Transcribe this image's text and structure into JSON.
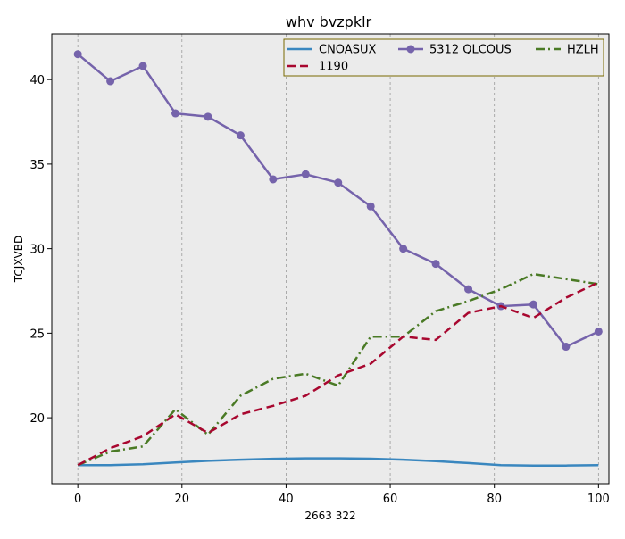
{
  "chart_data": {
    "type": "line",
    "title": "whv bvzpklr",
    "xlabel": "2663 322",
    "ylabel": "TCJXVBD",
    "xlim": [
      -5,
      102
    ],
    "ylim": [
      16.1,
      42.7
    ],
    "xticks": [
      0,
      20,
      40,
      60,
      80,
      100
    ],
    "yticks": [
      20,
      25,
      30,
      35,
      40
    ],
    "grid": "vertical dashed",
    "legend_position": "top-right",
    "background": "#ebebeb",
    "series": [
      {
        "name": "CNOASUX",
        "color": "#3a87bf",
        "style": "solid",
        "marker": "none",
        "x": [
          0,
          6.25,
          12.5,
          18.75,
          25,
          31.25,
          37.5,
          43.75,
          50,
          56.25,
          62.5,
          68.75,
          75,
          81.25,
          87.5,
          93.75,
          100
        ],
        "y": [
          17.2,
          17.2,
          17.25,
          17.35,
          17.45,
          17.52,
          17.57,
          17.6,
          17.6,
          17.58,
          17.52,
          17.43,
          17.32,
          17.2,
          17.17,
          17.17,
          17.2
        ]
      },
      {
        "name": "5312 QLCOUS",
        "color": "#7563ab",
        "style": "solid",
        "marker": "circle",
        "x": [
          0,
          6.25,
          12.5,
          18.75,
          25,
          31.25,
          37.5,
          43.75,
          50,
          56.25,
          62.5,
          68.75,
          75,
          81.25,
          87.5,
          93.75,
          100
        ],
        "y": [
          41.5,
          39.9,
          40.8,
          38.0,
          37.8,
          36.7,
          34.1,
          34.4,
          33.9,
          32.5,
          30.0,
          29.1,
          27.6,
          26.6,
          26.7,
          24.2,
          25.1
        ]
      },
      {
        "name": "HZLH",
        "color": "#4a7a25",
        "style": "dashdot",
        "marker": "none",
        "x": [
          0,
          6.25,
          12.5,
          18.75,
          25,
          31.25,
          37.5,
          43.75,
          50,
          56.25,
          62.5,
          68.75,
          75,
          81.25,
          87.5,
          93.75,
          100
        ],
        "y": [
          17.2,
          18.0,
          18.3,
          20.5,
          19.0,
          21.3,
          22.3,
          22.6,
          21.9,
          24.8,
          24.8,
          26.3,
          26.9,
          27.6,
          28.5,
          28.2,
          27.9
        ]
      },
      {
        "name": "1190",
        "color": "#a8072f",
        "style": "dashed",
        "marker": "none",
        "x": [
          0,
          6.25,
          12.5,
          18.75,
          25,
          31.25,
          37.5,
          43.75,
          50,
          56.25,
          62.5,
          68.75,
          75,
          81.25,
          87.5,
          93.75,
          100
        ],
        "y": [
          17.2,
          18.2,
          18.9,
          20.2,
          19.1,
          20.2,
          20.7,
          21.3,
          22.5,
          23.2,
          24.8,
          24.6,
          26.2,
          26.6,
          25.9,
          27.1,
          28.0
        ]
      }
    ]
  }
}
